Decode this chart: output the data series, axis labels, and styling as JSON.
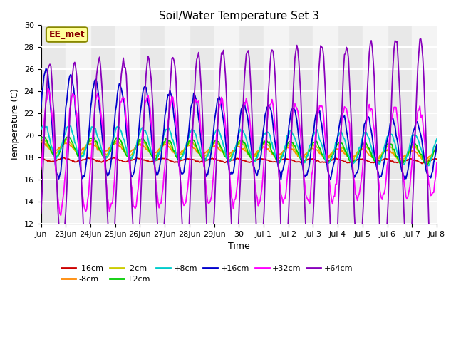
{
  "title": "Soil/Water Temperature Set 3",
  "xlabel": "Time",
  "ylabel": "Temperature (C)",
  "ylim": [
    12,
    30
  ],
  "yticks": [
    12,
    14,
    16,
    18,
    20,
    22,
    24,
    26,
    28,
    30
  ],
  "annotation": "EE_met",
  "series_colors": {
    "-16cm": "#cc0000",
    "-8cm": "#ff8800",
    "-2cm": "#cccc00",
    "+2cm": "#00cc00",
    "+8cm": "#00cccc",
    "+16cm": "#0000cc",
    "+32cm": "#ff00ff",
    "+64cm": "#8800bb"
  },
  "tick_labels": [
    "Jun",
    "23Jun",
    "24Jun",
    "25Jun",
    "26Jun",
    "27Jun",
    "28Jun",
    "29Jun",
    "30",
    "Jul 1",
    "Jul 2",
    "Jul 3",
    "Jul 4",
    "Jul 5",
    "Jul 6",
    "Jul 7",
    "Jul 8"
  ],
  "num_points": 400
}
